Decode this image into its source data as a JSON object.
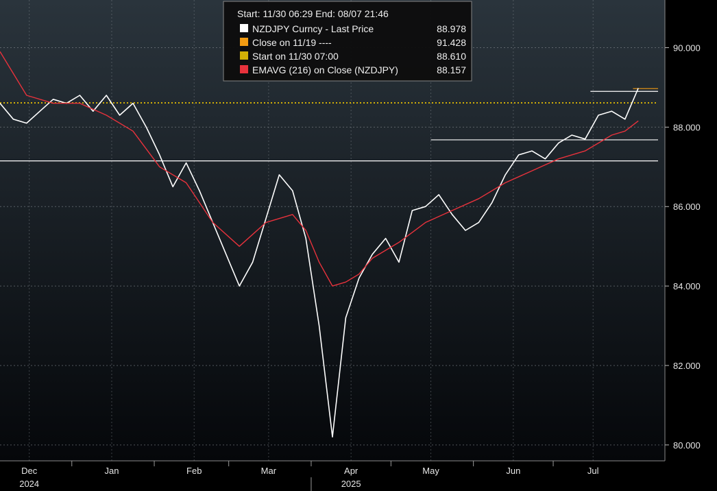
{
  "chart_data": {
    "type": "line",
    "header": "Start: 11/30 06:29 End: 08/07 21:46",
    "legend": [
      {
        "label": "NZDJPY Curncy - Last Price",
        "value": "88.978",
        "color": "#ffffff"
      },
      {
        "label": "Close on 11/19 ----",
        "value": "91.428",
        "color": "#f39c12"
      },
      {
        "label": "Start on 11/30 07:00",
        "value": "88.610",
        "color": "#d4b106"
      },
      {
        "label": "EMAVG (216)  on Close (NZDJPY)",
        "value": "88.157",
        "color": "#e8323c"
      }
    ],
    "ylim": [
      79.6,
      91.2
    ],
    "y_ticks": [
      80,
      82,
      84,
      86,
      88,
      90
    ],
    "y_tick_labels": [
      "80.000",
      "82.000",
      "84.000",
      "86.000",
      "88.000",
      "90.000"
    ],
    "x_range_days": [
      -10,
      240
    ],
    "x_month_labels": [
      "Dec",
      "Jan",
      "Feb",
      "Mar",
      "Apr",
      "May",
      "Jun",
      "Jul"
    ],
    "x_month_positions_days": [
      1,
      32,
      63,
      91,
      122,
      152,
      183,
      213
    ],
    "x_year_labels": [
      {
        "label": "2024",
        "day": 1
      },
      {
        "label": "2025",
        "day": 122
      }
    ],
    "horizontal_lines": [
      {
        "y": 88.61,
        "color": "#d4b106",
        "style": "dotted"
      },
      {
        "y": 87.15,
        "color": "#ffffff",
        "style": "solid"
      },
      {
        "y": 87.68,
        "color": "#ffffff",
        "style": "solid",
        "from_day": 152
      },
      {
        "y": 88.9,
        "color": "#ffffff",
        "style": "solid",
        "from_day": 212
      },
      {
        "y": 88.97,
        "color": "#f39c12",
        "style": "solid",
        "from_day": 228
      }
    ],
    "series": [
      {
        "color": "#ffffff",
        "x": [
          -10,
          -5,
          0,
          5,
          10,
          15,
          20,
          25,
          30,
          35,
          40,
          45,
          50,
          55,
          60,
          65,
          70,
          75,
          80,
          85,
          90,
          95,
          100,
          105,
          110,
          115,
          120,
          125,
          130,
          135,
          140,
          145,
          150,
          155,
          160,
          165,
          170,
          175,
          180,
          185,
          190,
          195,
          200,
          205,
          210,
          215,
          220,
          225,
          230
        ],
        "values": [
          88.6,
          88.2,
          88.1,
          88.4,
          88.7,
          88.6,
          88.8,
          88.4,
          88.8,
          88.3,
          88.6,
          88.0,
          87.3,
          86.5,
          87.1,
          86.4,
          85.6,
          84.8,
          84.0,
          84.6,
          85.7,
          86.8,
          86.4,
          85.2,
          83.0,
          80.2,
          83.2,
          84.2,
          84.8,
          85.2,
          84.6,
          85.9,
          86.0,
          86.3,
          85.8,
          85.4,
          85.6,
          86.1,
          86.8,
          87.3,
          87.4,
          87.2,
          87.6,
          87.8,
          87.7,
          88.3,
          88.4,
          88.2,
          88.98
        ]
      },
      {
        "color": "#e8323c",
        "x": [
          -10,
          0,
          10,
          20,
          30,
          40,
          50,
          60,
          70,
          80,
          85,
          90,
          100,
          105,
          110,
          115,
          120,
          125,
          130,
          140,
          150,
          160,
          170,
          180,
          190,
          200,
          210,
          215,
          220,
          225,
          230
        ],
        "values": [
          89.9,
          88.8,
          88.6,
          88.6,
          88.3,
          87.9,
          87.0,
          86.6,
          85.6,
          85.0,
          85.3,
          85.6,
          85.8,
          85.4,
          84.6,
          84.0,
          84.1,
          84.3,
          84.7,
          85.1,
          85.6,
          85.9,
          86.2,
          86.6,
          86.9,
          87.2,
          87.4,
          87.6,
          87.8,
          87.9,
          88.157
        ]
      }
    ]
  }
}
